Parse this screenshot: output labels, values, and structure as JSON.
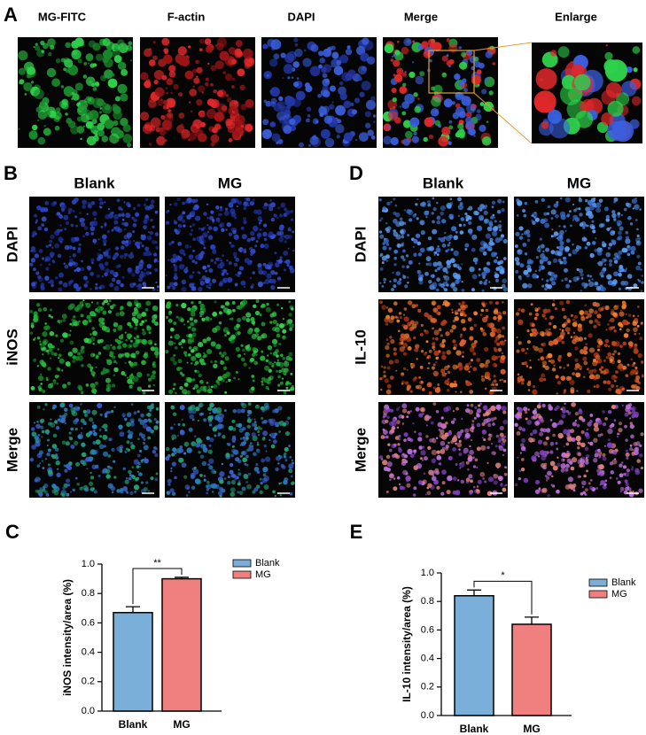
{
  "panel_labels": [
    "A",
    "B",
    "C",
    "D",
    "E"
  ],
  "panel_a": {
    "columns": [
      "MG-FITC",
      "F-actin",
      "DAPI",
      "Merge",
      "Enlarge"
    ]
  },
  "panel_b": {
    "columns": [
      "Blank",
      "MG"
    ],
    "rows": [
      "DAPI",
      "iNOS",
      "Merge"
    ]
  },
  "panel_d": {
    "columns": [
      "Blank",
      "MG"
    ],
    "rows": [
      "DAPI",
      "IL-10",
      "Merge"
    ]
  },
  "chart_data": [
    {
      "type": "bar",
      "y_label": "iNOS intensity/area (%)",
      "categories": [
        "Blank",
        "MG"
      ],
      "values": [
        0.67,
        0.9
      ],
      "errors": [
        0.04,
        0.01
      ],
      "colors": [
        "#7aafd9",
        "#f08080"
      ],
      "ylim": [
        0,
        1.0
      ],
      "yticks": [
        {
          "value": 0,
          "label": "0.0"
        },
        0.2,
        0.4,
        0.6,
        0.8,
        {
          "value": 1.0,
          "label": "1.0"
        }
      ],
      "significance": "**",
      "legend": "top-right"
    },
    {
      "type": "bar",
      "y_label": "IL-10 intensity/area (%)",
      "categories": [
        "Blank",
        "MG"
      ],
      "values": [
        0.84,
        0.64
      ],
      "errors": [
        0.04,
        0.05
      ],
      "colors": [
        "#7aafd9",
        "#f08080"
      ],
      "ylim": [
        0,
        1.0
      ],
      "yticks": [
        {
          "value": 0,
          "label": "0.0"
        },
        0.2,
        0.4,
        0.6,
        0.8,
        {
          "value": 1.0,
          "label": "1.0"
        }
      ],
      "significance": "*",
      "legend": "top-right"
    }
  ]
}
